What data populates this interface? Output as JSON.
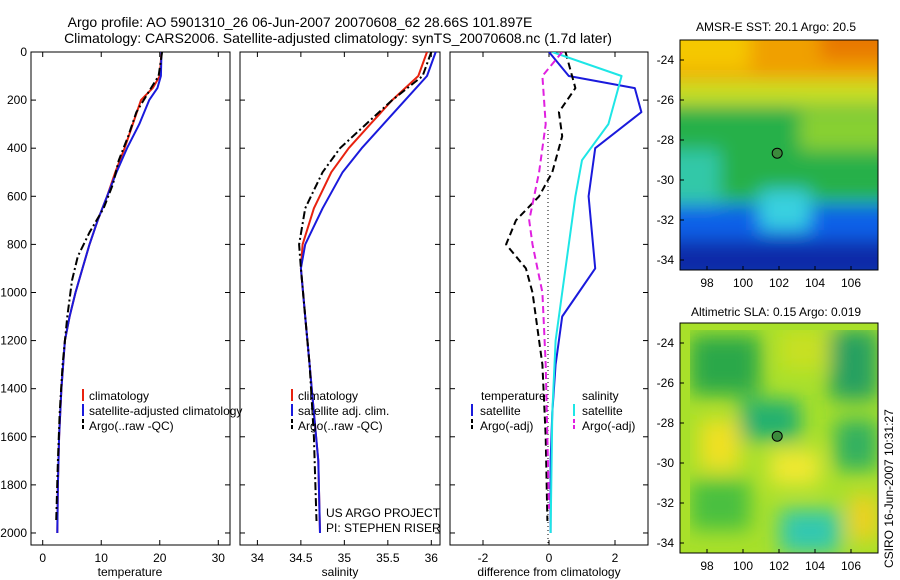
{
  "figure": {
    "title_line1": "Argo profile: AO 5901310_26 06-Jun-2007 20070608_62 28.66S 101.897E",
    "title_line2": "Climatology: CARS2006. Satellite-adjusted climatology: synTS_20070608.nc (1.7d later)",
    "credit_line1": "US ARGO PROJECT",
    "credit_line2": "PI: STEPHEN RISER",
    "side_stamp": "CSIRO 16-Jun-2007 10:31:27"
  },
  "colors": {
    "climatology": "#e8220f",
    "satellite": "#1a1adc",
    "argo": "#000000",
    "sal_satellite": "#1ee6e6",
    "sal_argo": "#e020e0",
    "marker_fill": "#3c8a3c"
  },
  "chart_data": [
    {
      "type": "line",
      "panel": "temperature",
      "xlabel": "temperature",
      "xlim": [
        -2,
        32
      ],
      "ylim": [
        2050,
        0
      ],
      "xticks": [
        0,
        10,
        20,
        30
      ],
      "yticks": [
        0,
        200,
        400,
        600,
        800,
        1000,
        1200,
        1400,
        1600,
        1800,
        2000
      ],
      "legend_placement": "lower-right",
      "series": [
        {
          "name": "climatology",
          "color_key": "climatology",
          "dash": "solid",
          "x": [
            20.3,
            20.0,
            18.8,
            16.8,
            15.4,
            14.0,
            12.4,
            11.0,
            9.4,
            8.0,
            6.8,
            5.6,
            4.6,
            3.8,
            3.2,
            2.8,
            2.6,
            2.5
          ],
          "depth": [
            0,
            100,
            150,
            200,
            300,
            400,
            500,
            600,
            700,
            800,
            900,
            1000,
            1100,
            1200,
            1400,
            1600,
            1800,
            2000
          ]
        },
        {
          "name": "satellite-adjusted climatology",
          "color_key": "satellite",
          "dash": "solid",
          "x": [
            20.3,
            20.2,
            19.6,
            18.2,
            16.5,
            14.4,
            12.6,
            11.0,
            9.4,
            8.0,
            6.8,
            5.6,
            4.6,
            3.8,
            3.2,
            2.8,
            2.6,
            2.5
          ],
          "depth": [
            0,
            100,
            150,
            200,
            300,
            400,
            500,
            600,
            700,
            800,
            900,
            1000,
            1100,
            1200,
            1400,
            1600,
            1800,
            2000
          ]
        },
        {
          "name": "Argo(..raw -QC)",
          "color_key": "argo",
          "dash": "dash-dot",
          "x": [
            20.4,
            19.8,
            18.5,
            16.0,
            14.6,
            13.0,
            12.0,
            10.4,
            8.0,
            6.0,
            5.0,
            4.2,
            3.4,
            2.9,
            2.6,
            2.3
          ],
          "depth": [
            0,
            100,
            150,
            250,
            350,
            450,
            550,
            650,
            750,
            850,
            950,
            1100,
            1300,
            1500,
            1700,
            1950
          ]
        }
      ]
    },
    {
      "type": "line",
      "panel": "salinity",
      "xlabel": "salinity",
      "xlim": [
        33.8,
        36.1
      ],
      "ylim": [
        2050,
        0
      ],
      "xticks": [
        34,
        34.5,
        35,
        35.5,
        36
      ],
      "xticklabels": [
        "34",
        "34.5",
        "35",
        "35.5",
        "36"
      ],
      "legend_placement": "lower-right",
      "series": [
        {
          "name": "climatology",
          "color_key": "climatology",
          "dash": "solid",
          "x": [
            35.95,
            35.85,
            35.55,
            35.3,
            35.05,
            34.85,
            34.65,
            34.52,
            34.5,
            34.55,
            34.6,
            34.65,
            34.7,
            34.72
          ],
          "depth": [
            0,
            100,
            200,
            300,
            400,
            500,
            650,
            800,
            900,
            1100,
            1300,
            1500,
            1700,
            2000
          ]
        },
        {
          "name": "satellite adj. clim.",
          "color_key": "satellite",
          "dash": "solid",
          "x": [
            36.05,
            35.95,
            35.7,
            35.45,
            35.2,
            34.98,
            34.75,
            34.55,
            34.5,
            34.55,
            34.6,
            34.65,
            34.7,
            34.72
          ],
          "depth": [
            0,
            100,
            200,
            300,
            400,
            500,
            650,
            800,
            900,
            1100,
            1300,
            1500,
            1700,
            2000
          ]
        },
        {
          "name": "Argo(..raw -QC)",
          "color_key": "argo",
          "dash": "dash-dot",
          "x": [
            36.0,
            35.9,
            35.55,
            35.25,
            34.95,
            34.75,
            34.55,
            34.48,
            34.5,
            34.55,
            34.6,
            34.65,
            34.68
          ],
          "depth": [
            0,
            100,
            200,
            300,
            400,
            500,
            650,
            800,
            900,
            1100,
            1300,
            1600,
            1950
          ]
        }
      ]
    },
    {
      "type": "line",
      "panel": "difference",
      "xlabel": "difference from climatology",
      "xlim": [
        -3,
        3
      ],
      "ylim": [
        2050,
        0
      ],
      "xticks": [
        -2,
        0,
        2
      ],
      "legend_placement": "lower",
      "legend_headers": [
        "temperature",
        "salinity"
      ],
      "series": [
        {
          "name": "satellite",
          "group": "temperature",
          "color_key": "satellite",
          "dash": "solid",
          "x": [
            0.0,
            0.6,
            2.6,
            2.8,
            1.4,
            1.2,
            1.3,
            1.4,
            0.9,
            0.4,
            0.2,
            0.1,
            0.05,
            0.05
          ],
          "depth": [
            0,
            100,
            150,
            250,
            400,
            600,
            750,
            900,
            1000,
            1100,
            1300,
            1500,
            1700,
            2000
          ]
        },
        {
          "name": "Argo(-adj)",
          "group": "temperature",
          "color_key": "argo",
          "dash": "dash",
          "x": [
            0.5,
            0.8,
            0.3,
            0.4,
            0.1,
            -0.3,
            -1.0,
            -1.3,
            -0.7,
            -0.5,
            -0.4,
            -0.2,
            -0.1,
            -0.05
          ],
          "depth": [
            0,
            150,
            250,
            350,
            500,
            600,
            700,
            800,
            900,
            1000,
            1100,
            1300,
            1600,
            1950
          ]
        },
        {
          "name": "satellite",
          "group": "salinity",
          "color_key": "sal_satellite",
          "dash": "solid",
          "x": [
            0.1,
            2.2,
            1.8,
            1.0,
            0.8,
            0.6,
            0.4,
            0.2,
            0.1,
            0.05
          ],
          "depth": [
            0,
            100,
            300,
            450,
            600,
            800,
            1000,
            1200,
            1500,
            2000
          ]
        },
        {
          "name": "Argo(-adj)",
          "group": "salinity",
          "color_key": "sal_argo",
          "dash": "dash",
          "x": [
            0.4,
            -0.2,
            -0.1,
            -0.3,
            -0.6,
            -0.5,
            -0.2,
            -0.1,
            0.0
          ],
          "depth": [
            0,
            100,
            300,
            500,
            700,
            800,
            1000,
            1300,
            1900
          ]
        }
      ]
    },
    {
      "type": "heatmap",
      "panel": "sst-map",
      "title": "AMSR-E SST: 20.1 Argo: 20.5",
      "xlim": [
        96.5,
        107.5
      ],
      "ylim": [
        -34.5,
        -23.0
      ],
      "xticks": [
        98,
        100,
        102,
        104,
        106
      ],
      "yticks": [
        -24,
        -26,
        -28,
        -30,
        -32,
        -34
      ],
      "marker": {
        "lon": 101.9,
        "lat": -28.66
      }
    },
    {
      "type": "heatmap",
      "panel": "sla-map",
      "title": "Altimetric SLA: 0.15 Argo: 0.019",
      "xlim": [
        96.5,
        107.5
      ],
      "ylim": [
        -34.5,
        -23.0
      ],
      "xticks": [
        98,
        100,
        102,
        104,
        106
      ],
      "yticks": [
        -24,
        -26,
        -28,
        -30,
        -32,
        -34
      ],
      "marker": {
        "lon": 101.9,
        "lat": -28.66
      }
    }
  ]
}
